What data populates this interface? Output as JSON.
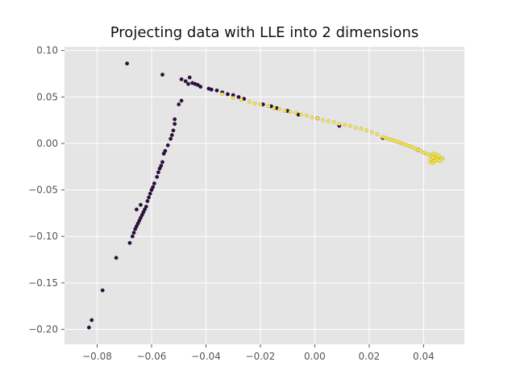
{
  "chart_data": {
    "type": "scatter",
    "title": "Projecting data with LLE into 2 dimensions",
    "xlabel": "",
    "ylabel": "",
    "xlim": [
      -0.092,
      0.055
    ],
    "ylim": [
      -0.216,
      0.104
    ],
    "x_ticks": [
      -0.08,
      -0.06,
      -0.04,
      -0.02,
      0.0,
      0.02,
      0.04
    ],
    "x_tick_labels": [
      "−0.08",
      "−0.06",
      "−0.04",
      "−0.02",
      "0.00",
      "0.02",
      "0.04"
    ],
    "y_ticks": [
      0.1,
      0.05,
      0.0,
      -0.05,
      -0.1,
      -0.15,
      -0.2
    ],
    "y_tick_labels": [
      "0.10",
      "0.05",
      "0.00",
      "−0.05",
      "−0.10",
      "−0.15",
      "−0.20"
    ],
    "grid": true,
    "colors": {
      "background": "#e5e5e5",
      "grid": "#ffffff",
      "class0": "#2b0f3a",
      "class1": "#f5e642"
    },
    "series": [
      {
        "points": [
          [
            -0.083,
            -0.198
          ],
          [
            -0.082,
            -0.19
          ],
          [
            -0.078,
            -0.158
          ],
          [
            -0.073,
            -0.123
          ],
          [
            -0.068,
            -0.107
          ],
          [
            -0.067,
            -0.1
          ],
          [
            -0.0665,
            -0.096
          ],
          [
            -0.066,
            -0.092
          ],
          [
            -0.0655,
            -0.089
          ],
          [
            -0.065,
            -0.086
          ],
          [
            -0.0645,
            -0.083
          ],
          [
            -0.064,
            -0.08
          ],
          [
            -0.0635,
            -0.077
          ],
          [
            -0.063,
            -0.074
          ],
          [
            -0.0625,
            -0.071
          ],
          [
            -0.062,
            -0.068
          ],
          [
            -0.0655,
            -0.071
          ],
          [
            -0.064,
            -0.066
          ],
          [
            -0.0615,
            -0.062
          ],
          [
            -0.061,
            -0.058
          ],
          [
            -0.0605,
            -0.054
          ],
          [
            -0.06,
            -0.05
          ],
          [
            -0.0595,
            -0.047
          ],
          [
            -0.059,
            -0.043
          ],
          [
            -0.058,
            -0.036
          ],
          [
            -0.0575,
            -0.031
          ],
          [
            -0.057,
            -0.027
          ],
          [
            -0.0565,
            -0.024
          ],
          [
            -0.056,
            -0.02
          ],
          [
            -0.0555,
            -0.011
          ],
          [
            -0.055,
            -0.008
          ],
          [
            -0.054,
            -0.002
          ],
          [
            -0.053,
            0.005
          ],
          [
            -0.0525,
            0.009
          ],
          [
            -0.052,
            0.014
          ],
          [
            -0.0515,
            0.021
          ],
          [
            -0.0515,
            0.026
          ],
          [
            -0.05,
            0.042
          ],
          [
            -0.049,
            0.046
          ],
          [
            -0.069,
            0.086
          ],
          [
            -0.056,
            0.074
          ],
          [
            -0.049,
            0.069
          ],
          [
            -0.0475,
            0.067
          ],
          [
            -0.0465,
            0.064
          ],
          [
            -0.045,
            0.065
          ],
          [
            -0.046,
            0.071
          ],
          [
            -0.044,
            0.064
          ],
          [
            -0.043,
            0.063
          ],
          [
            -0.042,
            0.061
          ],
          [
            -0.039,
            0.059
          ],
          [
            -0.038,
            0.058
          ],
          [
            -0.036,
            0.057
          ],
          [
            -0.034,
            0.055
          ],
          [
            -0.032,
            0.053
          ],
          [
            -0.03,
            0.052
          ],
          [
            -0.028,
            0.05
          ],
          [
            -0.026,
            0.048
          ],
          [
            -0.019,
            0.042
          ],
          [
            -0.016,
            0.04
          ],
          [
            -0.014,
            0.038
          ],
          [
            -0.01,
            0.035
          ],
          [
            -0.006,
            0.031
          ],
          [
            0.001,
            0.027
          ],
          [
            0.009,
            0.019
          ],
          [
            0.025,
            0.006
          ],
          [
            0.038,
            -0.007
          ],
          [
            0.045,
            -0.015
          ]
        ]
      },
      {
        "points": [
          [
            -0.034,
            0.053
          ],
          [
            -0.03,
            0.049
          ],
          [
            -0.027,
            0.047
          ],
          [
            -0.024,
            0.045
          ],
          [
            -0.022,
            0.043
          ],
          [
            -0.02,
            0.042
          ],
          [
            -0.017,
            0.04
          ],
          [
            -0.015,
            0.038
          ],
          [
            -0.013,
            0.037
          ],
          [
            -0.011,
            0.035
          ],
          [
            -0.009,
            0.034
          ],
          [
            -0.007,
            0.033
          ],
          [
            -0.005,
            0.031
          ],
          [
            -0.003,
            0.03
          ],
          [
            -0.001,
            0.028
          ],
          [
            0.001,
            0.027
          ],
          [
            0.003,
            0.025
          ],
          [
            0.005,
            0.024
          ],
          [
            0.007,
            0.023
          ],
          [
            0.009,
            0.021
          ],
          [
            0.011,
            0.02
          ],
          [
            0.013,
            0.019
          ],
          [
            0.015,
            0.017
          ],
          [
            0.017,
            0.016
          ],
          [
            0.019,
            0.014
          ],
          [
            0.021,
            0.012
          ],
          [
            0.023,
            0.01
          ],
          [
            0.025,
            0.007
          ],
          [
            0.026,
            0.006
          ],
          [
            0.027,
            0.005
          ],
          [
            0.028,
            0.004
          ],
          [
            0.029,
            0.003
          ],
          [
            0.03,
            0.002
          ],
          [
            0.031,
            0.001
          ],
          [
            0.032,
            0.0
          ],
          [
            0.033,
            -0.001
          ],
          [
            0.034,
            -0.002
          ],
          [
            0.035,
            -0.003
          ],
          [
            0.036,
            -0.004
          ],
          [
            0.037,
            -0.006
          ],
          [
            0.038,
            -0.007
          ],
          [
            0.039,
            -0.008
          ],
          [
            0.04,
            -0.01
          ],
          [
            0.041,
            -0.011
          ],
          [
            0.042,
            -0.012
          ],
          [
            0.043,
            -0.013
          ],
          [
            0.044,
            -0.014
          ],
          [
            0.045,
            -0.015
          ],
          [
            0.046,
            -0.016
          ],
          [
            0.047,
            -0.016
          ],
          [
            0.0465,
            -0.017
          ],
          [
            0.044,
            -0.016
          ],
          [
            0.043,
            -0.018
          ],
          [
            0.0425,
            -0.02
          ],
          [
            0.0435,
            -0.021
          ],
          [
            0.044,
            -0.019
          ],
          [
            0.045,
            -0.018
          ],
          [
            0.046,
            -0.019
          ],
          [
            0.0455,
            -0.013
          ],
          [
            0.0445,
            -0.012
          ],
          [
            0.0435,
            -0.011
          ],
          [
            0.0425,
            -0.017
          ],
          [
            0.0435,
            -0.015
          ]
        ]
      }
    ]
  }
}
